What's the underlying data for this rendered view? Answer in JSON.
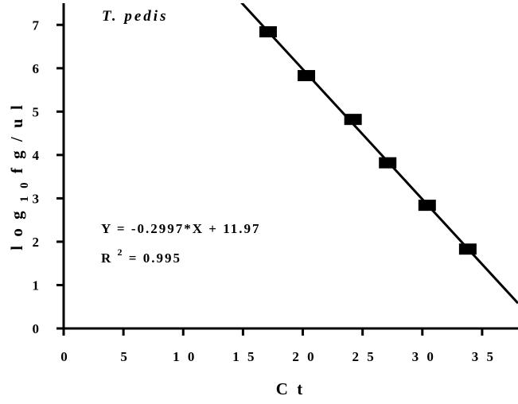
{
  "chart_data": {
    "type": "scatter",
    "title": "T. pedis",
    "xlabel": "C t",
    "ylabel": {
      "base": "l o g",
      "subscript": "1 0",
      "rest": " f g / u l"
    },
    "xlim": [
      0,
      38
    ],
    "ylim": [
      0,
      7.5
    ],
    "xticks": [
      0,
      5,
      10,
      15,
      20,
      25,
      30,
      35
    ],
    "yticks": [
      0,
      1,
      2,
      3,
      4,
      5,
      6,
      7
    ],
    "xtick_labels": [
      "0",
      "5",
      "1 0",
      "1 5",
      "2 0",
      "2 5",
      "3 0",
      "3 5"
    ],
    "ytick_labels": [
      "0",
      "1",
      "2",
      "3",
      "4",
      "5",
      "6",
      "7"
    ],
    "grid": false,
    "series": [
      {
        "points": [
          {
            "x": 17.1,
            "y": 6.84
          },
          {
            "x": 20.3,
            "y": 5.83
          },
          {
            "x": 24.2,
            "y": 4.82
          },
          {
            "x": 27.1,
            "y": 3.82
          },
          {
            "x": 30.4,
            "y": 2.84
          },
          {
            "x": 33.8,
            "y": 1.83
          }
        ],
        "marker": "square",
        "color": "#000000"
      }
    ],
    "fit": {
      "slope": -0.2997,
      "intercept": 11.97,
      "x_range": [
        14.6,
        38
      ]
    },
    "annotations": {
      "equation": "Y = -0.2997*X + 11.97",
      "r2_label": "R",
      "r2_sup": "2",
      "r2_value": " = 0.995"
    }
  }
}
